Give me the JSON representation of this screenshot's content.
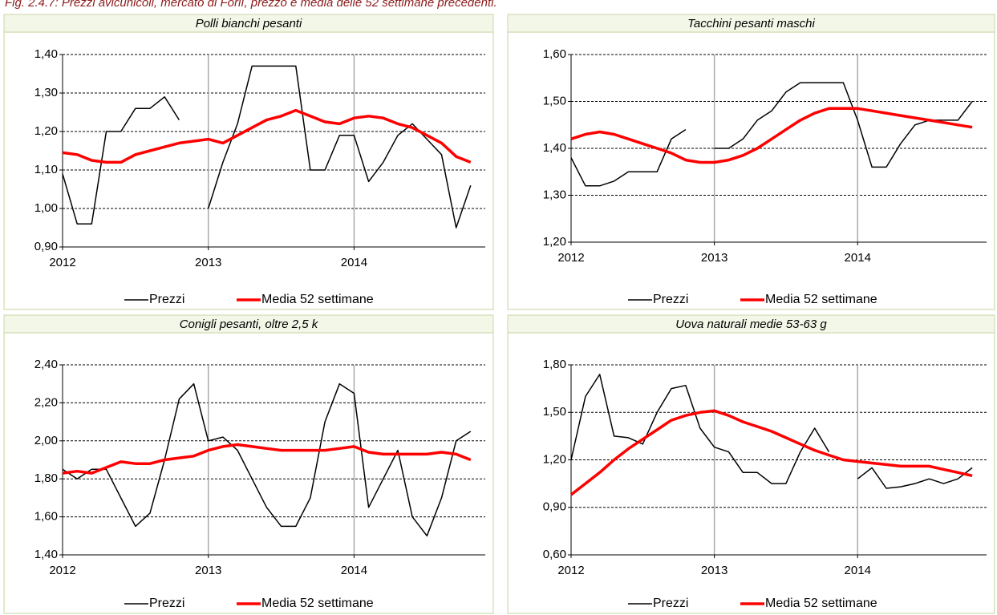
{
  "fig_title": "Fig. 2.4.7: Prezzi avicunicoli, mercato di Forlì, prezzo e media delle 52 settimane precedenti.",
  "chart_data": [
    {
      "type": "line",
      "title": "Polli bianchi pesanti",
      "x": [
        2012.0,
        2012.1,
        2012.2,
        2012.3,
        2012.4,
        2012.5,
        2012.6,
        2012.7,
        2012.8,
        2012.9,
        2013.0,
        2013.1,
        2013.2,
        2013.3,
        2013.4,
        2013.5,
        2013.6,
        2013.7,
        2013.8,
        2013.9,
        2014.0,
        2014.1,
        2014.2,
        2014.3,
        2014.4,
        2014.5,
        2014.6,
        2014.7,
        2014.8
      ],
      "xlim": [
        2012,
        2014.9
      ],
      "xticks": [
        2012,
        2013,
        2014
      ],
      "ylim": [
        0.9,
        1.4
      ],
      "yticks": [
        {
          "value": 0.9,
          "label": "0,90"
        },
        {
          "value": 1.0,
          "label": "1,00"
        },
        {
          "value": 1.1,
          "label": "1,10"
        },
        {
          "value": 1.2,
          "label": "1,20"
        },
        {
          "value": 1.3,
          "label": "1,30"
        },
        {
          "value": 1.4,
          "label": "1,40"
        }
      ],
      "series": [
        {
          "name": "Prezzi",
          "color": "#000000",
          "values": [
            1.09,
            0.96,
            0.96,
            1.2,
            1.2,
            1.26,
            1.26,
            1.29,
            1.23,
            null,
            1.0,
            1.12,
            1.22,
            1.37,
            1.37,
            1.37,
            1.37,
            1.1,
            1.1,
            1.19,
            1.19,
            1.07,
            1.12,
            1.19,
            1.22,
            1.18,
            1.14,
            0.95,
            1.06
          ]
        },
        {
          "name": "Media 52 settimane",
          "color": "#ff0000",
          "values": [
            1.145,
            1.14,
            1.125,
            1.12,
            1.12,
            1.14,
            1.15,
            1.16,
            1.17,
            1.175,
            1.18,
            1.17,
            1.19,
            1.21,
            1.23,
            1.24,
            1.255,
            1.24,
            1.225,
            1.22,
            1.235,
            1.24,
            1.235,
            1.22,
            1.21,
            1.19,
            1.17,
            1.135,
            1.12
          ]
        }
      ]
    },
    {
      "type": "line",
      "title": "Tacchini pesanti maschi",
      "x": [
        2012.0,
        2012.1,
        2012.2,
        2012.3,
        2012.4,
        2012.5,
        2012.6,
        2012.7,
        2012.8,
        2012.9,
        2013.0,
        2013.1,
        2013.2,
        2013.3,
        2013.4,
        2013.5,
        2013.6,
        2013.7,
        2013.8,
        2013.9,
        2014.0,
        2014.1,
        2014.2,
        2014.3,
        2014.4,
        2014.5,
        2014.6,
        2014.7,
        2014.8
      ],
      "xlim": [
        2012,
        2014.9
      ],
      "xticks": [
        2012,
        2013,
        2014
      ],
      "ylim": [
        1.2,
        1.6
      ],
      "yticks": [
        {
          "value": 1.2,
          "label": "1,20"
        },
        {
          "value": 1.3,
          "label": "1,30"
        },
        {
          "value": 1.4,
          "label": "1,40"
        },
        {
          "value": 1.5,
          "label": "1,50"
        },
        {
          "value": 1.6,
          "label": "1,60"
        }
      ],
      "series": [
        {
          "name": "Prezzi",
          "color": "#000000",
          "values": [
            1.38,
            1.32,
            1.32,
            1.33,
            1.35,
            1.35,
            1.35,
            1.42,
            1.44,
            null,
            1.4,
            1.4,
            1.42,
            1.46,
            1.48,
            1.52,
            1.54,
            1.54,
            1.54,
            1.54,
            1.46,
            1.36,
            1.36,
            1.41,
            1.45,
            1.46,
            1.46,
            1.46,
            1.5
          ]
        },
        {
          "name": "Media 52 settimane",
          "color": "#ff0000",
          "values": [
            1.42,
            1.43,
            1.435,
            1.43,
            1.42,
            1.41,
            1.4,
            1.39,
            1.375,
            1.37,
            1.37,
            1.375,
            1.385,
            1.4,
            1.42,
            1.44,
            1.46,
            1.475,
            1.485,
            1.485,
            1.485,
            1.48,
            1.475,
            1.47,
            1.465,
            1.46,
            1.455,
            1.45,
            1.445
          ]
        }
      ]
    },
    {
      "type": "line",
      "title": "Conigli pesanti, oltre 2,5 k",
      "x": [
        2012.0,
        2012.1,
        2012.2,
        2012.3,
        2012.4,
        2012.5,
        2012.6,
        2012.7,
        2012.8,
        2012.9,
        2013.0,
        2013.1,
        2013.2,
        2013.3,
        2013.4,
        2013.5,
        2013.6,
        2013.7,
        2013.8,
        2013.9,
        2014.0,
        2014.1,
        2014.2,
        2014.3,
        2014.4,
        2014.5,
        2014.6,
        2014.7,
        2014.8
      ],
      "xlim": [
        2012,
        2014.9
      ],
      "xticks": [
        2012,
        2013,
        2014
      ],
      "ylim": [
        1.4,
        2.4
      ],
      "yticks": [
        {
          "value": 1.4,
          "label": "1,40"
        },
        {
          "value": 1.6,
          "label": "1,60"
        },
        {
          "value": 1.8,
          "label": "1,80"
        },
        {
          "value": 2.0,
          "label": "2,00"
        },
        {
          "value": 2.2,
          "label": "2,20"
        },
        {
          "value": 2.4,
          "label": "2,40"
        }
      ],
      "series": [
        {
          "name": "Prezzi",
          "color": "#000000",
          "values": [
            1.85,
            1.8,
            1.85,
            1.85,
            1.7,
            1.55,
            1.62,
            1.9,
            2.22,
            2.3,
            2.0,
            2.02,
            1.95,
            1.8,
            1.65,
            1.55,
            1.55,
            1.7,
            2.1,
            2.3,
            2.25,
            1.65,
            1.8,
            1.95,
            1.6,
            1.5,
            1.7,
            2.0,
            2.05
          ]
        },
        {
          "name": "Media 52 settimane",
          "color": "#ff0000",
          "values": [
            1.83,
            1.84,
            1.83,
            1.86,
            1.89,
            1.88,
            1.88,
            1.9,
            1.91,
            1.92,
            1.95,
            1.97,
            1.98,
            1.97,
            1.96,
            1.95,
            1.95,
            1.95,
            1.95,
            1.96,
            1.97,
            1.94,
            1.93,
            1.93,
            1.93,
            1.93,
            1.94,
            1.93,
            1.9
          ]
        }
      ]
    },
    {
      "type": "line",
      "title": "Uova naturali medie 53-63 g",
      "x": [
        2012.0,
        2012.1,
        2012.2,
        2012.3,
        2012.4,
        2012.5,
        2012.6,
        2012.7,
        2012.8,
        2012.9,
        2013.0,
        2013.1,
        2013.2,
        2013.3,
        2013.4,
        2013.5,
        2013.6,
        2013.7,
        2013.8,
        2013.9,
        2014.0,
        2014.1,
        2014.2,
        2014.3,
        2014.4,
        2014.5,
        2014.6,
        2014.7,
        2014.8
      ],
      "xlim": [
        2012,
        2014.9
      ],
      "xticks": [
        2012,
        2013,
        2014
      ],
      "ylim": [
        0.6,
        1.8
      ],
      "yticks": [
        {
          "value": 0.6,
          "label": "0,60"
        },
        {
          "value": 0.9,
          "label": "0,90"
        },
        {
          "value": 1.2,
          "label": "1,20"
        },
        {
          "value": 1.5,
          "label": "1,50"
        },
        {
          "value": 1.8,
          "label": "1,80"
        }
      ],
      "series": [
        {
          "name": "Prezzi",
          "color": "#000000",
          "values": [
            1.2,
            1.6,
            1.74,
            1.35,
            1.34,
            1.3,
            1.5,
            1.65,
            1.67,
            1.4,
            1.28,
            1.25,
            1.12,
            1.12,
            1.05,
            1.05,
            1.25,
            1.4,
            1.25,
            null,
            1.08,
            1.15,
            1.02,
            1.03,
            1.05,
            1.08,
            1.05,
            1.08,
            1.15
          ]
        },
        {
          "name": "Media 52 settimane",
          "color": "#ff0000",
          "values": [
            0.98,
            1.05,
            1.12,
            1.2,
            1.27,
            1.33,
            1.39,
            1.45,
            1.48,
            1.5,
            1.51,
            1.48,
            1.44,
            1.41,
            1.38,
            1.34,
            1.3,
            1.26,
            1.23,
            1.2,
            1.19,
            1.18,
            1.17,
            1.16,
            1.16,
            1.16,
            1.14,
            1.12,
            1.1
          ]
        }
      ]
    }
  ]
}
